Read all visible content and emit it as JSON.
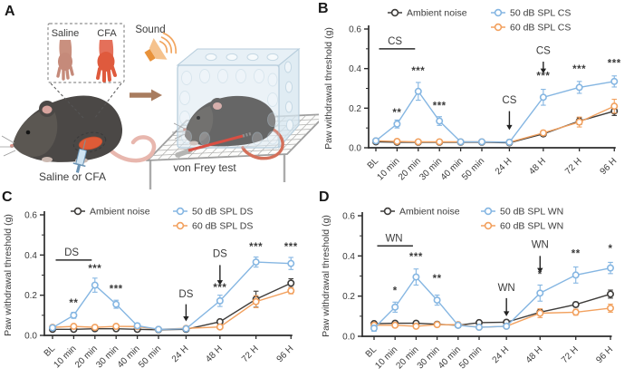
{
  "panels": {
    "a": "A",
    "b": "B",
    "c": "C",
    "d": "D"
  },
  "colors": {
    "ambient": "#3e3c3a",
    "blue": "#85b6e2",
    "orange": "#f2a15f",
    "axis": "#2c2c2c",
    "text": "#3b3b3b"
  },
  "panel_a": {
    "letter": "A",
    "saline_label": "Saline",
    "cfa_label": "CFA",
    "sound_label": "Sound",
    "injection_label": "Saline or CFA",
    "test_label": "von Frey test"
  },
  "chart_data": [
    {
      "panel": "B",
      "type": "line",
      "title": "",
      "ylabel": "Paw withdrawal threshold (g)",
      "ylim": [
        0,
        0.6
      ],
      "yticks": [
        0,
        0.2,
        0.4,
        0.6
      ],
      "minor_yticks": [
        0.1,
        0.3,
        0.5
      ],
      "grid": false,
      "legend_position": "top",
      "categories": [
        "BL",
        "10 min",
        "20 min",
        "30 min",
        "40 min",
        "50 min",
        "24 H",
        "48 H",
        "72 H",
        "96 H"
      ],
      "x_units": [
        0,
        1,
        2,
        3,
        4,
        5,
        6.3,
        7.9,
        9.6,
        11.25
      ],
      "series": [
        {
          "name": "Ambient noise",
          "color": "ambient",
          "values": [
            0.03,
            0.028,
            0.028,
            0.028,
            0.028,
            0.028,
            0.025,
            0.07,
            0.135,
            0.185
          ],
          "errors": [
            0.005,
            0.004,
            0.004,
            0.004,
            0.004,
            0.004,
            0.004,
            0.012,
            0.018,
            0.022
          ]
        },
        {
          "name": "50 dB SPL CS",
          "color": "blue",
          "values": [
            0.035,
            0.12,
            0.285,
            0.135,
            0.03,
            0.03,
            0.028,
            0.255,
            0.305,
            0.335
          ],
          "errors": [
            0.006,
            0.02,
            0.045,
            0.022,
            0.005,
            0.005,
            0.005,
            0.04,
            0.03,
            0.028
          ]
        },
        {
          "name": "60 dB SPL CS",
          "color": "orange",
          "values": [
            0.035,
            0.032,
            0.03,
            0.03,
            0.03,
            0.03,
            0.028,
            0.075,
            0.13,
            0.21
          ],
          "errors": [
            0.006,
            0.005,
            0.005,
            0.005,
            0.005,
            0.005,
            0.005,
            0.012,
            0.025,
            0.035
          ]
        }
      ],
      "stim": {
        "label": "CS",
        "bar": {
          "x1": 0.15,
          "x2": 1.85,
          "y": 0.5,
          "label_x": 0.9
        },
        "arrows": [
          {
            "i": 6,
            "text_y": 0.225,
            "from_y": 0.185,
            "to_y": 0.09
          },
          {
            "i": 7,
            "text_y": 0.475,
            "from_y": 0.435,
            "to_y": 0.375
          }
        ]
      },
      "significance": [
        {
          "i": 1,
          "text": "**",
          "y": 0.16
        },
        {
          "i": 2,
          "text": "***",
          "y": 0.37
        },
        {
          "i": 3,
          "text": "***",
          "y": 0.195
        },
        {
          "i": 7,
          "text": "***",
          "y": 0.345
        },
        {
          "i": 8,
          "text": "***",
          "y": 0.38
        },
        {
          "i": 9,
          "text": "***",
          "y": 0.41
        }
      ]
    },
    {
      "panel": "C",
      "type": "line",
      "title": "",
      "ylabel": "Paw withdrawal threshold (g)",
      "ylim": [
        0,
        0.6
      ],
      "yticks": [
        0,
        0.2,
        0.4,
        0.6
      ],
      "minor_yticks": [
        0.1,
        0.3,
        0.5
      ],
      "grid": false,
      "legend_position": "top",
      "categories": [
        "BL",
        "10 min",
        "20 min",
        "30 min",
        "40 min",
        "50 min",
        "24 H",
        "48 H",
        "72 H",
        "96 H"
      ],
      "x_units": [
        0,
        1,
        2,
        3,
        4,
        5,
        6.3,
        7.9,
        9.6,
        11.25
      ],
      "series": [
        {
          "name": "Ambient noise",
          "color": "ambient",
          "values": [
            0.03,
            0.03,
            0.033,
            0.033,
            0.03,
            0.028,
            0.03,
            0.068,
            0.18,
            0.26
          ],
          "errors": [
            0.005,
            0.004,
            0.005,
            0.005,
            0.004,
            0.004,
            0.005,
            0.01,
            0.04,
            0.022
          ]
        },
        {
          "name": "50 dB SPL DS",
          "color": "blue",
          "values": [
            0.038,
            0.1,
            0.25,
            0.155,
            0.048,
            0.03,
            0.033,
            0.172,
            0.365,
            0.358
          ],
          "errors": [
            0.008,
            0.015,
            0.035,
            0.02,
            0.012,
            0.005,
            0.006,
            0.028,
            0.025,
            0.03
          ]
        },
        {
          "name": "60 dB SPL DS",
          "color": "orange",
          "values": [
            0.04,
            0.045,
            0.04,
            0.045,
            0.044,
            0.03,
            0.035,
            0.042,
            0.168,
            0.222
          ],
          "errors": [
            0.007,
            0.008,
            0.006,
            0.007,
            0.007,
            0.004,
            0.006,
            0.008,
            0.03,
            0.015
          ]
        }
      ],
      "stim": {
        "label": "DS",
        "bar": {
          "x1": 0.15,
          "x2": 1.85,
          "y": 0.375,
          "label_x": 0.9
        },
        "arrows": [
          {
            "i": 6,
            "text_y": 0.19,
            "from_y": 0.155,
            "to_y": 0.07
          },
          {
            "i": 7,
            "text_y": 0.39,
            "from_y": 0.35,
            "to_y": 0.25
          }
        ]
      },
      "significance": [
        {
          "i": 1,
          "text": "**",
          "y": 0.145
        },
        {
          "i": 2,
          "text": "***",
          "y": 0.315
        },
        {
          "i": 3,
          "text": "***",
          "y": 0.215
        },
        {
          "i": 7,
          "text": "***",
          "y": 0.22
        },
        {
          "i": 8,
          "text": "***",
          "y": 0.425
        },
        {
          "i": 9,
          "text": "***",
          "y": 0.425
        }
      ]
    },
    {
      "panel": "D",
      "type": "line",
      "title": "",
      "ylabel": "Paw withdrawal threshold (g)",
      "ylim": [
        0,
        0.6
      ],
      "yticks": [
        0,
        0.2,
        0.4,
        0.6
      ],
      "minor_yticks": [
        0.1,
        0.3,
        0.5
      ],
      "grid": false,
      "legend_position": "top",
      "categories": [
        "BL",
        "10 min",
        "20 min",
        "30 min",
        "40 min",
        "50 min",
        "24 H",
        "48 H",
        "72 H",
        "96 H"
      ],
      "x_units": [
        0,
        1,
        2,
        3,
        4,
        5,
        6.3,
        7.9,
        9.6,
        11.25
      ],
      "series": [
        {
          "name": "Ambient noise",
          "color": "ambient",
          "values": [
            0.063,
            0.065,
            0.065,
            0.06,
            0.055,
            0.068,
            0.07,
            0.12,
            0.158,
            0.21
          ],
          "errors": [
            0.008,
            0.007,
            0.007,
            0.007,
            0.007,
            0.008,
            0.008,
            0.012,
            0.012,
            0.02
          ]
        },
        {
          "name": "50 dB SPL WN",
          "color": "blue",
          "values": [
            0.04,
            0.145,
            0.295,
            0.18,
            0.055,
            0.045,
            0.05,
            0.215,
            0.305,
            0.34
          ],
          "errors": [
            0.015,
            0.025,
            0.04,
            0.025,
            0.01,
            0.008,
            0.01,
            0.04,
            0.04,
            0.028
          ]
        },
        {
          "name": "60 dB SPL WN",
          "color": "orange",
          "values": [
            0.055,
            0.055,
            0.05,
            0.058,
            0.058,
            0.045,
            0.05,
            0.115,
            0.12,
            0.14
          ],
          "errors": [
            0.008,
            0.007,
            0.006,
            0.007,
            0.007,
            0.006,
            0.007,
            0.022,
            0.015,
            0.02
          ]
        }
      ],
      "stim": {
        "label": "WN",
        "bar": {
          "x1": 0.15,
          "x2": 1.85,
          "y": 0.45,
          "label_x": 0.95
        },
        "arrows": [
          {
            "i": 6,
            "text_y": 0.225,
            "from_y": 0.19,
            "to_y": 0.1
          },
          {
            "i": 7,
            "text_y": 0.44,
            "from_y": 0.4,
            "to_y": 0.315
          }
        ]
      },
      "significance": [
        {
          "i": 1,
          "text": "*",
          "y": 0.21
        },
        {
          "i": 2,
          "text": "***",
          "y": 0.38
        },
        {
          "i": 3,
          "text": "**",
          "y": 0.27
        },
        {
          "i": 7,
          "text": "*",
          "y": 0.29
        },
        {
          "i": 8,
          "text": "**",
          "y": 0.395
        },
        {
          "i": 9,
          "text": "*",
          "y": 0.42
        }
      ]
    }
  ]
}
